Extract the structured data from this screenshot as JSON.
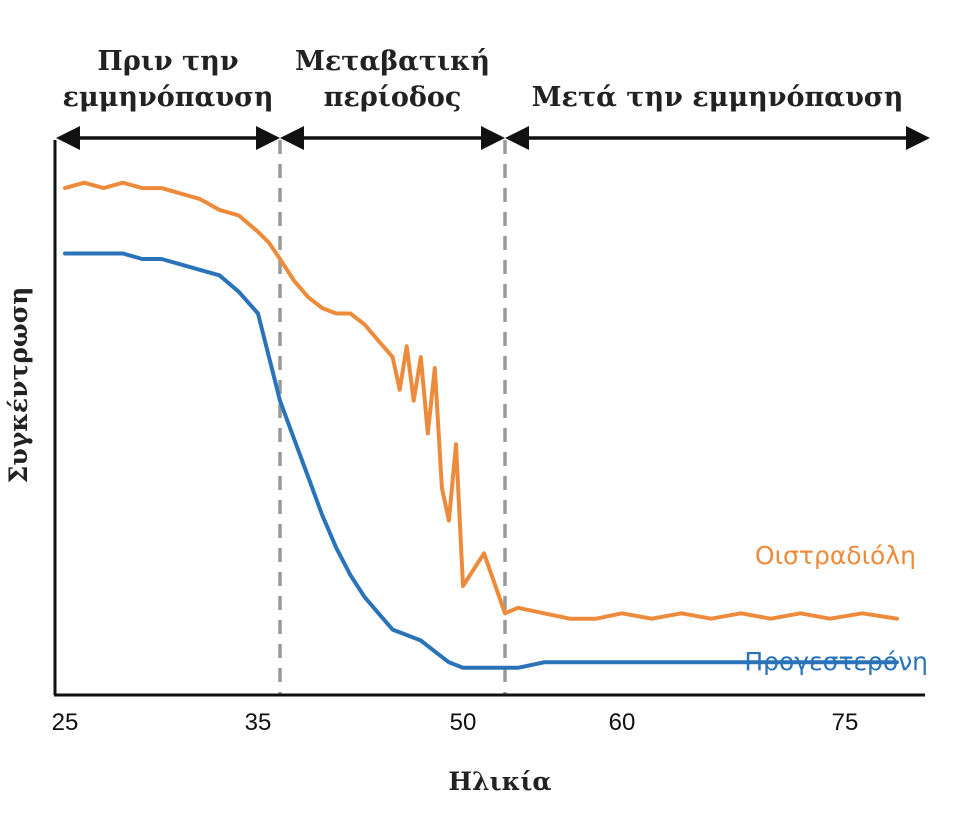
{
  "chart_data": {
    "type": "line",
    "xlabel": "Ηλικία",
    "ylabel": "Συγκέντρωση",
    "x_ticks": [
      "25",
      "35",
      "50",
      "60",
      "75"
    ],
    "y_ticks": [],
    "phases": [
      {
        "lines": [
          "Πριν την",
          "εμμηνόπαυση"
        ],
        "start": "25",
        "end": "37"
      },
      {
        "lines": [
          "Μεταβατική",
          "περίοδος"
        ],
        "start": "37",
        "end": "51"
      },
      {
        "lines": [
          "Μετά την εμμηνόπαυση"
        ],
        "start": "51",
        "end": "80"
      }
    ],
    "series": [
      {
        "name": "Οιστραδιόλη",
        "color": "#ED8B3D",
        "x": [
          25,
          26,
          27,
          28,
          29,
          30,
          31,
          32,
          33,
          34,
          35,
          36,
          37,
          38,
          39,
          40,
          41,
          42,
          43,
          44,
          45,
          45.5,
          46,
          46.5,
          47,
          47.5,
          48,
          48.5,
          49,
          49.5,
          50,
          50.5,
          51,
          52,
          54,
          56,
          58,
          60,
          62,
          64,
          66,
          68,
          70,
          72,
          74,
          76,
          78
        ],
        "values": [
          93,
          94,
          93,
          94,
          93,
          93,
          92,
          91,
          89,
          88,
          85,
          83,
          80,
          76,
          73,
          71,
          70,
          70,
          68,
          65,
          62,
          56,
          64,
          54,
          62,
          48,
          60,
          38,
          32,
          46,
          20,
          26,
          15,
          16,
          15,
          14,
          14,
          15,
          14,
          15,
          14,
          15,
          14,
          15,
          14,
          15,
          14
        ]
      },
      {
        "name": "Προγεστερόνη",
        "color": "#2A73B8",
        "x": [
          25,
          26,
          27,
          28,
          29,
          30,
          31,
          32,
          33,
          34,
          35,
          36,
          37,
          38,
          39,
          40,
          41,
          42,
          43,
          44,
          45,
          46,
          47,
          48,
          49,
          50,
          51,
          52,
          54,
          56,
          58,
          60,
          62,
          64,
          66,
          68,
          70,
          72,
          74,
          76,
          78
        ],
        "values": [
          81,
          81,
          81,
          81,
          80,
          80,
          79,
          78,
          77,
          74,
          70,
          62,
          54,
          47,
          40,
          33,
          27,
          22,
          18,
          15,
          12,
          11,
          10,
          8,
          6,
          5,
          5,
          5,
          6,
          6,
          6,
          6,
          6,
          6,
          6,
          6,
          6,
          6,
          6,
          6,
          6
        ]
      }
    ]
  }
}
